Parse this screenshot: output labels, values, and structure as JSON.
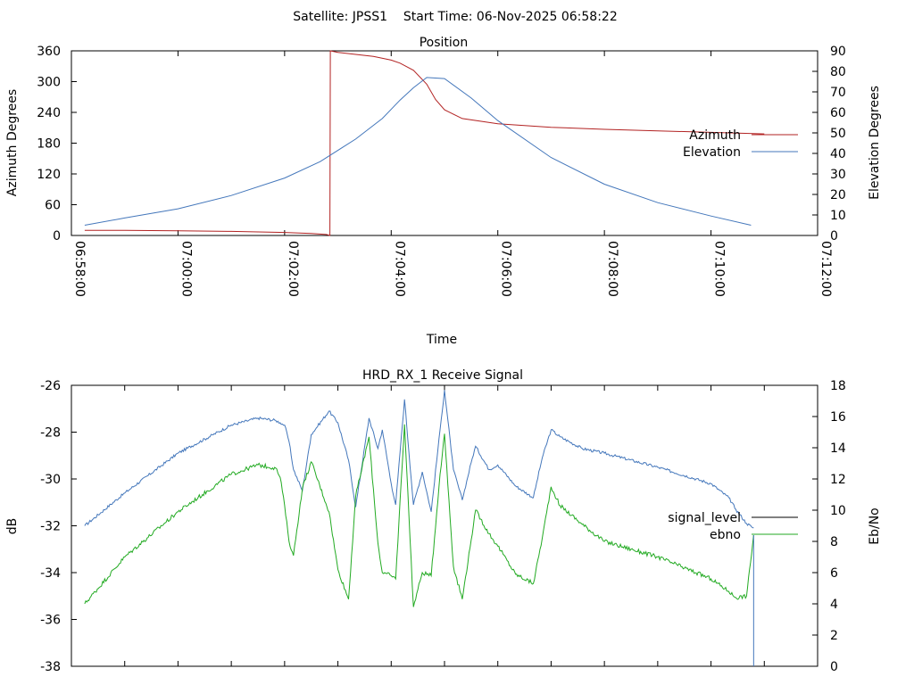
{
  "page_title": "Satellite: JPSS1    Start Time: 06-Nov-2025 06:58:22",
  "colors": {
    "azimuth": "#b22222",
    "elevation": "#4477bb",
    "signal_level": "#000000",
    "ebno": "#22aa22",
    "signal_trace": "#4477bb"
  },
  "chart_data": [
    {
      "id": "position",
      "type": "line",
      "title": "Position",
      "xlabel": "Time",
      "ylabel": "Azimuth Degrees",
      "y2label": "Elevation Degrees",
      "xlim": [
        0,
        840
      ],
      "ylim": [
        0,
        360
      ],
      "y2lim": [
        0,
        90
      ],
      "x_unit": "seconds after 06:58:00",
      "xticks": [
        0,
        120,
        240,
        360,
        480,
        600,
        720,
        840
      ],
      "xtick_labels": [
        "06:58:00",
        "07:00:00",
        "07:02:00",
        "07:04:00",
        "07:06:00",
        "07:08:00",
        "07:10:00",
        "07:12:00"
      ],
      "yticks": [
        0,
        60,
        120,
        180,
        240,
        300,
        360
      ],
      "ytick_labels": [
        "0",
        "60",
        "120",
        "180",
        "240",
        "300",
        "360"
      ],
      "y2ticks": [
        0,
        10,
        20,
        30,
        40,
        50,
        60,
        70,
        80,
        90
      ],
      "y2tick_labels": [
        "0",
        "10",
        "20",
        "30",
        "40",
        "50",
        "60",
        "70",
        "80",
        "90"
      ],
      "legend_position": "right",
      "series": [
        {
          "name": "Azimuth",
          "axis": "y",
          "x": [
            15,
            60,
            120,
            180,
            240,
            270,
            287,
            291,
            291.5,
            300,
            320,
            340,
            360,
            370,
            385,
            400,
            410,
            420,
            440,
            480,
            540,
            600,
            660,
            720,
            780
          ],
          "y": [
            10,
            10,
            9,
            8,
            6,
            4,
            2,
            0,
            360,
            357,
            353,
            349,
            342,
            336,
            322,
            295,
            265,
            245,
            228,
            218,
            211,
            207,
            204,
            201,
            198
          ]
        },
        {
          "name": "Elevation",
          "axis": "y2",
          "x": [
            15,
            60,
            120,
            180,
            240,
            280,
            320,
            350,
            370,
            385,
            400,
            420,
            450,
            480,
            540,
            600,
            660,
            720,
            765
          ],
          "y": [
            5,
            8.5,
            13,
            19.5,
            28,
            36,
            47,
            57,
            66,
            72,
            77,
            76.5,
            67,
            56,
            38,
            25,
            16,
            9.5,
            5
          ]
        }
      ]
    },
    {
      "id": "receive-signal",
      "type": "line",
      "title": "HRD_RX_1 Receive Signal",
      "xlabel": "",
      "ylabel": "dB",
      "y2label": "Eb/No",
      "xlim": [
        0,
        840
      ],
      "ylim": [
        -38,
        -26
      ],
      "y2lim": [
        0,
        18
      ],
      "x_unit": "seconds after 06:58:00",
      "xticks": [
        0,
        60,
        120,
        180,
        240,
        300,
        360,
        420,
        480,
        540,
        600,
        660,
        720,
        780,
        840
      ],
      "yticks": [
        -38,
        -36,
        -34,
        -32,
        -30,
        -28,
        -26
      ],
      "ytick_labels": [
        "-38",
        "-36",
        "-34",
        "-32",
        "-30",
        "-28",
        "-26"
      ],
      "y2ticks": [
        0,
        2,
        4,
        6,
        8,
        10,
        12,
        14,
        16,
        18
      ],
      "y2tick_labels": [
        "0",
        "2",
        "4",
        "6",
        "8",
        "10",
        "12",
        "14",
        "16",
        "18"
      ],
      "legend_position": "right",
      "series": [
        {
          "name": "signal_level",
          "axis": "y",
          "x": [
            15,
            60,
            120,
            180,
            210,
            230,
            235,
            240,
            245,
            250,
            260,
            270,
            290,
            300,
            312,
            320,
            335,
            345,
            350,
            360,
            365,
            375,
            385,
            395,
            405,
            415,
            420,
            430,
            440,
            450,
            455,
            470,
            480,
            500,
            520,
            530,
            540,
            550,
            575,
            600,
            660,
            720,
            740,
            748,
            760,
            768
          ],
          "y": [
            -32,
            -30.6,
            -28.9,
            -27.7,
            -27.4,
            -27.5,
            -27.6,
            -27.7,
            -28.4,
            -29.6,
            -30.5,
            -28.1,
            -27.1,
            -27.6,
            -29.2,
            -31.2,
            -27.4,
            -28.7,
            -27.9,
            -30.2,
            -31.1,
            -26.6,
            -31.1,
            -29.7,
            -31.4,
            -27.9,
            -26.2,
            -29.6,
            -30.9,
            -29.3,
            -28.6,
            -29.6,
            -29.4,
            -30.3,
            -30.8,
            -29.1,
            -27.9,
            -28.2,
            -28.7,
            -28.9,
            -29.5,
            -30.2,
            -30.8,
            -31.3,
            -31.9,
            -32.1
          ]
        },
        {
          "name": "ebno",
          "axis": "y2",
          "x": [
            15,
            60,
            120,
            180,
            210,
            230,
            235,
            240,
            245,
            250,
            260,
            270,
            290,
            300,
            312,
            320,
            335,
            345,
            350,
            360,
            365,
            375,
            385,
            395,
            405,
            415,
            420,
            430,
            440,
            450,
            455,
            470,
            480,
            500,
            520,
            530,
            540,
            550,
            575,
            600,
            660,
            720,
            740,
            748,
            760,
            768
          ],
          "y": [
            4,
            7,
            9.9,
            12.3,
            12.9,
            12.7,
            12.1,
            10.3,
            8,
            7.1,
            11.4,
            13.1,
            9.9,
            6.2,
            4.3,
            10.9,
            14.7,
            7.9,
            6,
            5.8,
            5.6,
            15.5,
            3.8,
            6,
            5.8,
            12.3,
            14.9,
            6.4,
            4.3,
            8.1,
            10,
            8.5,
            7.7,
            5.9,
            5.3,
            8.2,
            11.5,
            10.3,
            9.1,
            8,
            7,
            5.6,
            4.8,
            4.4,
            4.5,
            8.4
          ]
        }
      ]
    }
  ]
}
